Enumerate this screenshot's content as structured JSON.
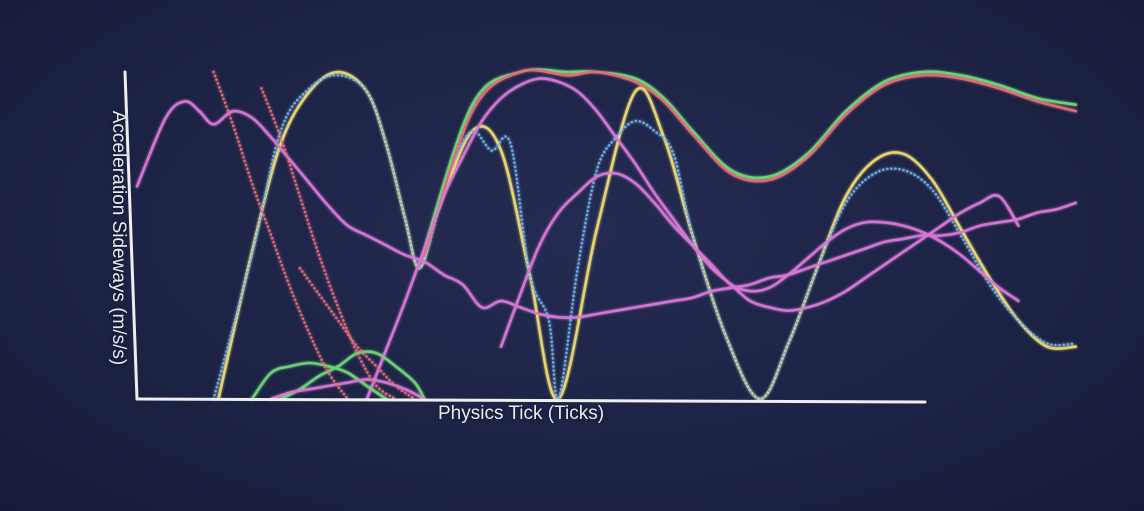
{
  "chart_data": {
    "type": "line",
    "xlabel": "Physics Tick (Ticks)",
    "ylabel": "Acceleration Sideways (m/s/s)",
    "xlim": [
      0,
      100
    ],
    "ylim": [
      0,
      100
    ],
    "grid": false,
    "legend": "none",
    "colors": {
      "yellow": "#e9d772",
      "blue": "#6faee3",
      "green": "#6ed477",
      "magenta": "#d777d5",
      "red": "#df6d7b",
      "axis": "#eeeeee"
    },
    "series": [
      {
        "color": "yellow",
        "style": "solid",
        "x": [
          8.5,
          12,
          15,
          18,
          21,
          24,
          26,
          28,
          29.5,
          31.5,
          35,
          38,
          41,
          44,
          48,
          52,
          55,
          58,
          61.5,
          65,
          68,
          71,
          74,
          77,
          80,
          83,
          86,
          89,
          92,
          95,
          98
        ],
        "y": [
          0,
          45,
          78,
          94,
          100,
          94,
          78,
          55,
          40,
          58,
          82,
          76,
          38,
          0,
          52,
          94,
          80,
          50,
          19,
          0,
          17,
          40,
          62,
          73,
          75,
          67,
          52,
          37,
          24,
          16,
          16
        ]
      },
      {
        "color": "blue",
        "style": "dotted",
        "x": [
          8,
          12,
          15,
          18,
          21,
          24,
          26,
          28,
          29.5,
          31.5,
          33,
          35,
          37,
          39,
          41,
          43,
          44,
          46,
          48,
          50,
          52,
          54,
          56,
          58,
          61.5,
          65,
          68,
          71,
          74,
          77,
          80,
          83,
          86,
          89,
          92,
          95,
          98
        ],
        "y": [
          0,
          44,
          82,
          95,
          99,
          94,
          78,
          55,
          40,
          58,
          72,
          82,
          76,
          78,
          38,
          24,
          0,
          40,
          70,
          80,
          85,
          82,
          75,
          50,
          19,
          0,
          17,
          40,
          60,
          69,
          70,
          64,
          50,
          35,
          24,
          17,
          17
        ]
      },
      {
        "color": "green",
        "style": "solid",
        "x": [
          30,
          35,
          40,
          45,
          48,
          52,
          55,
          58,
          62,
          66,
          70,
          74,
          78,
          82,
          86,
          90,
          94,
          98
        ],
        "y": [
          46,
          90,
          100,
          100,
          100,
          98,
          92,
          82,
          70,
          68,
          75,
          88,
          97,
          100,
          99,
          96,
          92,
          90
        ]
      },
      {
        "color": "red",
        "style": "solid",
        "x": [
          30,
          35,
          40,
          45,
          48,
          52,
          55,
          58,
          62,
          66,
          70,
          74,
          78,
          82,
          86,
          90,
          94,
          98
        ],
        "y": [
          44,
          88,
          100,
          99,
          100,
          97,
          91,
          81,
          69,
          67,
          74,
          87,
          96,
          99,
          98,
          95,
          91,
          88
        ]
      },
      {
        "color": "magenta",
        "style": "solid",
        "x": [
          0,
          3,
          5,
          6.5,
          8,
          10,
          12,
          14,
          16,
          18,
          20,
          22,
          24,
          26,
          28,
          30,
          32,
          34,
          36,
          38,
          40,
          42,
          44,
          46,
          48,
          50,
          52,
          54,
          56,
          58,
          60,
          62,
          64,
          66,
          68,
          70,
          72,
          74,
          76,
          78,
          80,
          82,
          84,
          86,
          88,
          90,
          92,
          94,
          96,
          98
        ],
        "y": [
          65,
          86,
          91,
          88,
          84,
          88,
          86,
          80,
          73,
          66,
          59,
          53,
          50,
          47,
          44,
          42,
          38,
          35,
          28,
          30,
          28,
          26,
          25,
          25,
          26,
          27,
          28,
          29,
          30,
          31,
          33,
          34,
          35,
          37,
          38,
          40,
          42,
          44,
          46,
          48,
          49,
          50,
          50,
          51,
          53,
          54,
          55,
          57,
          58,
          60
        ]
      },
      {
        "color": "magenta",
        "style": "solid",
        "x": [
          24,
          26,
          28,
          30,
          32,
          34,
          36,
          38,
          40,
          42,
          44,
          46,
          48,
          50,
          52,
          54,
          56,
          58,
          60,
          62,
          64,
          66,
          68,
          70,
          72,
          74,
          76,
          78,
          80,
          82,
          84,
          86,
          88,
          90,
          92
        ],
        "y": [
          0,
          15,
          30,
          46,
          62,
          74,
          85,
          92,
          96,
          98,
          97,
          94,
          88,
          80,
          72,
          63,
          55,
          47,
          40,
          35,
          30,
          28,
          27,
          28,
          30,
          33,
          37,
          41,
          45,
          49,
          53,
          57,
          60,
          62,
          53
        ]
      },
      {
        "color": "magenta",
        "style": "solid",
        "x": [
          38,
          40,
          42,
          44,
          46,
          48,
          50,
          52,
          54,
          56,
          58,
          60,
          62,
          64,
          66,
          68,
          70,
          72,
          74,
          76,
          78,
          80,
          82,
          84,
          86,
          88,
          90,
          92
        ],
        "y": [
          16,
          32,
          47,
          57,
          63,
          68,
          69,
          66,
          60,
          53,
          47,
          41,
          35,
          33,
          34,
          38,
          43,
          48,
          52,
          54,
          54,
          53,
          51,
          48,
          44,
          39,
          34,
          30
        ]
      },
      {
        "color": "green",
        "style": "solid",
        "x": [
          12,
          14,
          16,
          18,
          20,
          22,
          24,
          26
        ],
        "y": [
          0,
          8,
          10,
          11,
          10,
          8,
          4,
          0
        ]
      },
      {
        "color": "green",
        "style": "solid",
        "x": [
          15,
          17,
          19,
          21,
          23,
          25,
          27,
          29,
          30
        ],
        "y": [
          0,
          3,
          7,
          10,
          14,
          14,
          10,
          5,
          0
        ]
      },
      {
        "color": "magenta",
        "style": "solid",
        "x": [
          14,
          16,
          18,
          20,
          22,
          24,
          26,
          28,
          30
        ],
        "y": [
          0,
          2,
          3,
          4,
          5,
          6,
          5,
          3,
          0
        ]
      },
      {
        "color": "red",
        "style": "dotted",
        "x": [
          8,
          10,
          12,
          14,
          16,
          18,
          20,
          22
        ],
        "y": [
          100,
          84,
          66,
          50,
          34,
          20,
          8,
          0
        ]
      },
      {
        "color": "red",
        "style": "dotted",
        "x": [
          13,
          15,
          17,
          19,
          21,
          23,
          25,
          27
        ],
        "y": [
          95,
          80,
          62,
          44,
          28,
          14,
          4,
          0
        ]
      },
      {
        "color": "red",
        "style": "dotted",
        "x": [
          17,
          19,
          21,
          23,
          25,
          27,
          29
        ],
        "y": [
          40,
          32,
          24,
          16,
          10,
          4,
          0
        ]
      }
    ]
  }
}
